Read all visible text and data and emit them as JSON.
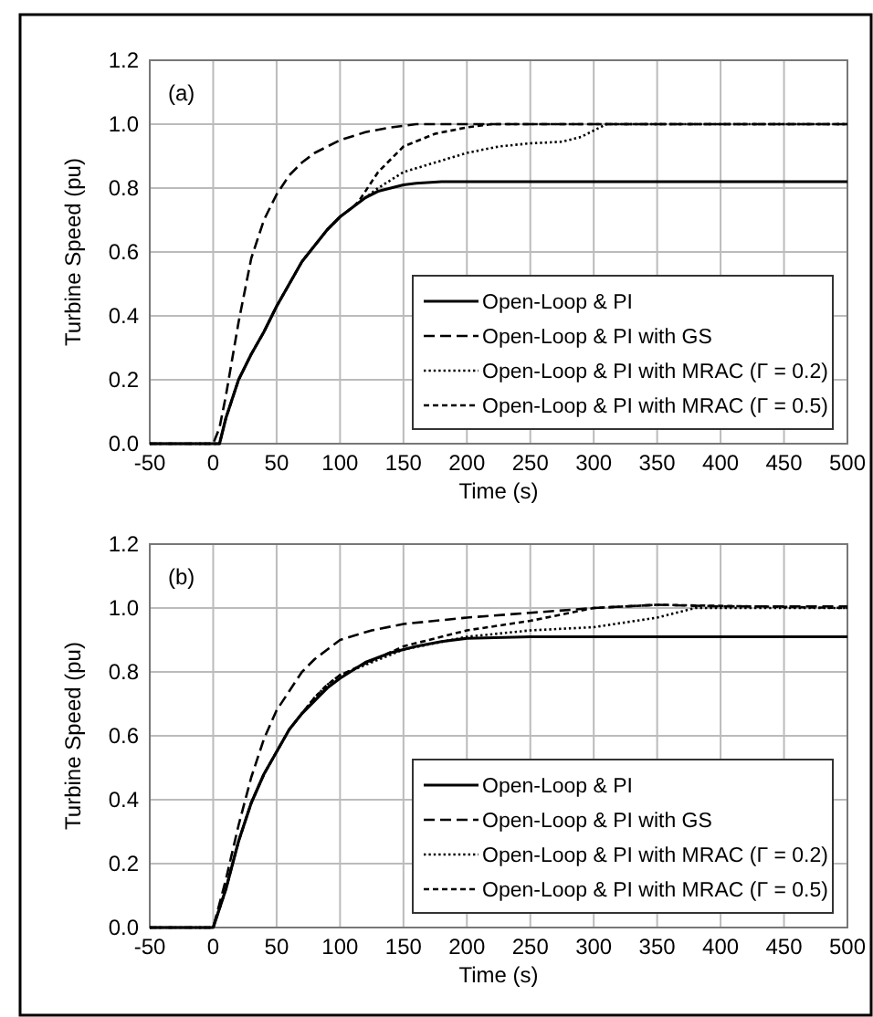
{
  "chart_data": [
    {
      "type": "line",
      "xlabel": "Time (s)",
      "ylabel": "Turbine Speed (pu)",
      "annotations": [
        "(a)"
      ],
      "xlim": [
        -50,
        500
      ],
      "ylim": [
        0,
        1.2
      ],
      "xticks": [
        -50,
        0,
        50,
        100,
        150,
        200,
        250,
        300,
        350,
        400,
        450,
        500
      ],
      "yticks": [
        {
          "value": 0,
          "label": "0.0"
        },
        {
          "value": 0.2,
          "label": "0.2"
        },
        {
          "value": 0.4,
          "label": "0.4"
        },
        {
          "value": 0.6,
          "label": "0.6"
        },
        {
          "value": 0.8,
          "label": "0.8"
        },
        {
          "value": 1,
          "label": "1.0"
        },
        {
          "value": 1.2,
          "label": "1.2"
        }
      ],
      "grid": true,
      "legend": "bottom right",
      "series": [
        {
          "name": "Open-Loop & PI",
          "color": "#000000",
          "line_style": "solid",
          "x": [
            -50,
            0,
            5,
            10,
            20,
            30,
            40,
            50,
            60,
            70,
            80,
            90,
            100,
            110,
            120,
            130,
            140,
            150,
            160,
            180,
            500
          ],
          "values": [
            0,
            0,
            0,
            0.08,
            0.2,
            0.28,
            0.35,
            0.43,
            0.5,
            0.57,
            0.62,
            0.67,
            0.71,
            0.74,
            0.77,
            0.79,
            0.8,
            0.81,
            0.815,
            0.82,
            0.82
          ]
        },
        {
          "name": "Open-Loop & PI with GS",
          "color": "#000000",
          "line_style": "dashed",
          "x": [
            -50,
            0,
            5,
            10,
            20,
            30,
            40,
            50,
            60,
            70,
            80,
            90,
            100,
            120,
            140,
            160,
            500
          ],
          "values": [
            0,
            0,
            0.05,
            0.15,
            0.38,
            0.58,
            0.7,
            0.78,
            0.84,
            0.88,
            0.91,
            0.93,
            0.95,
            0.975,
            0.99,
            1,
            1
          ]
        },
        {
          "name": "Open-Loop & PI with MRAC  (Γ = 0.2)",
          "color": "#000000",
          "line_style": "dotted",
          "x": [
            -50,
            0,
            5,
            10,
            20,
            30,
            40,
            50,
            60,
            70,
            80,
            90,
            100,
            110,
            120,
            130,
            150,
            175,
            200,
            225,
            250,
            275,
            290,
            300,
            310,
            500
          ],
          "values": [
            0,
            0,
            0,
            0.08,
            0.2,
            0.28,
            0.35,
            0.43,
            0.5,
            0.57,
            0.62,
            0.67,
            0.71,
            0.74,
            0.77,
            0.8,
            0.85,
            0.88,
            0.91,
            0.93,
            0.94,
            0.945,
            0.96,
            0.98,
            1,
            1
          ]
        },
        {
          "name": "Open-Loop & PI with MRAC  (Γ = 0.5)",
          "color": "#000000",
          "line_style": "shortdash",
          "x": [
            -50,
            0,
            5,
            10,
            20,
            30,
            40,
            50,
            60,
            70,
            80,
            90,
            100,
            110,
            115,
            130,
            150,
            175,
            200,
            220,
            500
          ],
          "values": [
            0,
            0,
            0,
            0.08,
            0.2,
            0.28,
            0.35,
            0.43,
            0.5,
            0.57,
            0.62,
            0.67,
            0.71,
            0.74,
            0.76,
            0.85,
            0.93,
            0.97,
            0.99,
            1,
            1
          ]
        }
      ]
    },
    {
      "type": "line",
      "xlabel": "Time (s)",
      "ylabel": "Turbine Speed (pu)",
      "annotations": [
        "(b)"
      ],
      "xlim": [
        -50,
        500
      ],
      "ylim": [
        0,
        1.2
      ],
      "xticks": [
        -50,
        0,
        50,
        100,
        150,
        200,
        250,
        300,
        350,
        400,
        450,
        500
      ],
      "yticks": [
        {
          "value": 0,
          "label": "0.0"
        },
        {
          "value": 0.2,
          "label": "0.2"
        },
        {
          "value": 0.4,
          "label": "0.4"
        },
        {
          "value": 0.6,
          "label": "0.6"
        },
        {
          "value": 0.8,
          "label": "0.8"
        },
        {
          "value": 1,
          "label": "1.0"
        },
        {
          "value": 1.2,
          "label": "1.2"
        }
      ],
      "grid": true,
      "legend": "bottom right",
      "series": [
        {
          "name": "Open-Loop & PI",
          "color": "#000000",
          "line_style": "solid",
          "x": [
            -50,
            0,
            10,
            20,
            30,
            40,
            50,
            60,
            70,
            80,
            90,
            100,
            120,
            140,
            160,
            180,
            200,
            250,
            500
          ],
          "values": [
            0,
            0,
            0.12,
            0.27,
            0.39,
            0.48,
            0.55,
            0.62,
            0.67,
            0.71,
            0.75,
            0.78,
            0.83,
            0.86,
            0.88,
            0.895,
            0.905,
            0.91,
            0.91
          ]
        },
        {
          "name": "Open-Loop & PI with GS",
          "color": "#000000",
          "line_style": "dashed",
          "x": [
            -50,
            0,
            10,
            20,
            30,
            40,
            50,
            60,
            70,
            80,
            90,
            100,
            125,
            150,
            200,
            250,
            300,
            350,
            400,
            500
          ],
          "values": [
            0,
            0,
            0.15,
            0.32,
            0.47,
            0.59,
            0.68,
            0.74,
            0.8,
            0.84,
            0.87,
            0.9,
            0.93,
            0.95,
            0.97,
            0.985,
            1,
            1.01,
            1.005,
            1.005
          ]
        },
        {
          "name": "Open-Loop & PI with MRAC  (Γ = 0.2)",
          "color": "#000000",
          "line_style": "dotted",
          "x": [
            -50,
            0,
            10,
            20,
            30,
            40,
            50,
            60,
            70,
            80,
            90,
            100,
            150,
            200,
            250,
            300,
            350,
            380,
            500
          ],
          "values": [
            0,
            0,
            0.12,
            0.27,
            0.39,
            0.48,
            0.55,
            0.62,
            0.67,
            0.72,
            0.76,
            0.79,
            0.87,
            0.91,
            0.93,
            0.94,
            0.97,
            1,
            1
          ]
        },
        {
          "name": "Open-Loop & PI with MRAC  (Γ = 0.5)",
          "color": "#000000",
          "line_style": "shortdash",
          "x": [
            -50,
            0,
            10,
            20,
            30,
            40,
            50,
            60,
            70,
            80,
            90,
            100,
            150,
            200,
            250,
            300,
            350,
            500
          ],
          "values": [
            0,
            0,
            0.12,
            0.27,
            0.39,
            0.48,
            0.55,
            0.62,
            0.67,
            0.72,
            0.76,
            0.79,
            0.88,
            0.93,
            0.96,
            1,
            1.01,
            1
          ]
        }
      ]
    }
  ]
}
